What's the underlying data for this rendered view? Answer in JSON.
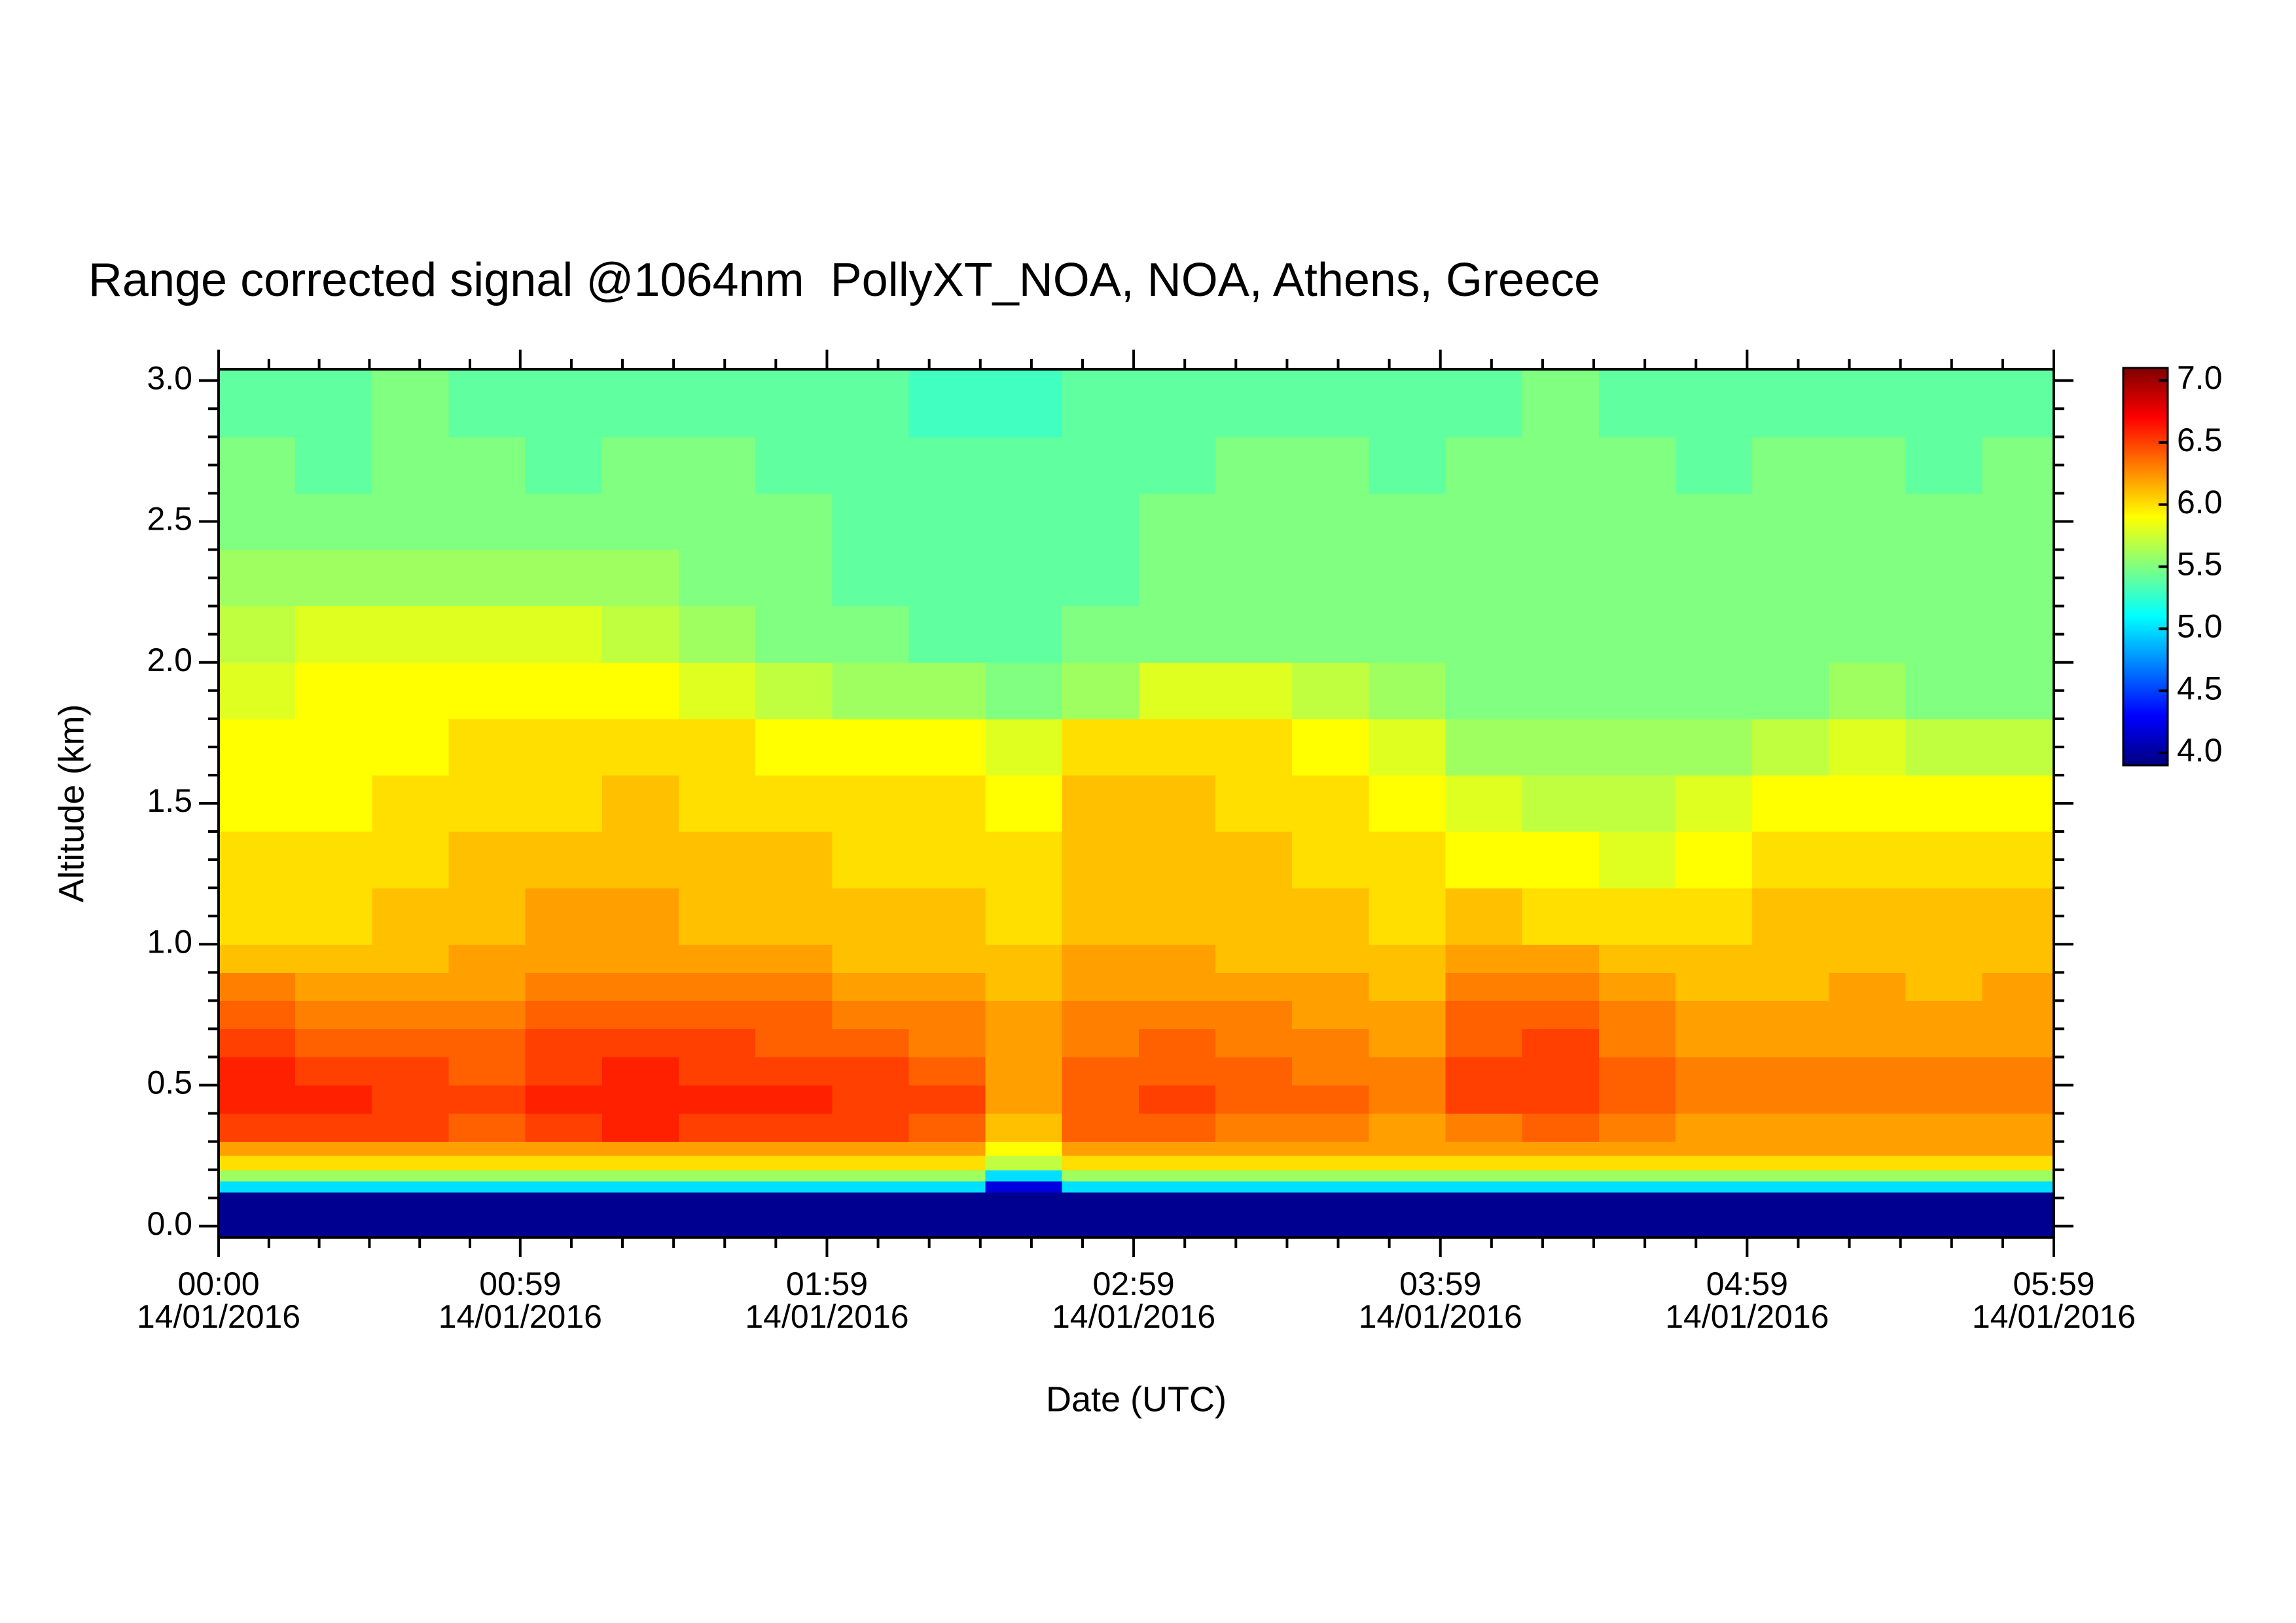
{
  "chart_data": {
    "type": "heatmap",
    "title": "Range corrected signal @1064nm  PollyXT_NOA, NOA, Athens, Greece",
    "x_label": "Date (UTC)",
    "y_label": "Altitude (km)",
    "xlim": [
      0,
      359
    ],
    "xticks": [
      {
        "value": 0,
        "label": "00:00\n14/01/2016"
      },
      {
        "value": 59,
        "label": "00:59\n14/01/2016"
      },
      {
        "value": 119,
        "label": "01:59\n14/01/2016"
      },
      {
        "value": 179,
        "label": "02:59\n14/01/2016"
      },
      {
        "value": 239,
        "label": "03:59\n14/01/2016"
      },
      {
        "value": 299,
        "label": "04:59\n14/01/2016"
      },
      {
        "value": 359,
        "label": "05:59\n14/01/2016"
      }
    ],
    "ylim": [
      -0.04,
      3.04
    ],
    "yticks": [
      {
        "value": 0,
        "label": "0.0"
      },
      0.5,
      {
        "value": 1,
        "label": "1.0"
      },
      1.5,
      {
        "value": 2,
        "label": "2.0"
      },
      2.5,
      {
        "value": 3,
        "label": "3.0"
      }
    ],
    "zlim": [
      3.9,
      7.1
    ],
    "zticks": [
      {
        "value": 4,
        "label": "4.0"
      },
      4.5,
      {
        "value": 5,
        "label": "5.0"
      },
      5.5,
      {
        "value": 6,
        "label": "6.0"
      },
      6.5,
      {
        "value": 7,
        "label": "7.0"
      }
    ],
    "colormap": [
      "#000080",
      "#0000ff",
      "#0080ff",
      "#00ffff",
      "#80ff80",
      "#ffff00",
      "#ff8000",
      "#ff0000",
      "#800000"
    ],
    "xbins": [
      0,
      15,
      30,
      45,
      60,
      75,
      90,
      105,
      120,
      135,
      150,
      165,
      180,
      195,
      210,
      225,
      240,
      255,
      270,
      285,
      300,
      315,
      330,
      345,
      359
    ],
    "ybins": [
      -0.04,
      0.12,
      0.16,
      0.2,
      0.25,
      0.3,
      0.4,
      0.5,
      0.6,
      0.7,
      0.8,
      0.9,
      1.0,
      1.2,
      1.4,
      1.6,
      1.8,
      2.0,
      2.2,
      2.4,
      2.6,
      2.8,
      3.04
    ],
    "values": [
      [
        3.95,
        3.95,
        3.95,
        3.95,
        3.95,
        3.95,
        3.95,
        3.95,
        3.95,
        3.95,
        3.95,
        3.95,
        3.95,
        3.95,
        3.95,
        3.95,
        3.95,
        3.95,
        3.95,
        3.95,
        3.95,
        3.95,
        3.95,
        3.95
      ],
      [
        5.0,
        5.0,
        5.0,
        5.0,
        5.0,
        5.0,
        5.0,
        5.0,
        5.0,
        5.0,
        4.2,
        5.0,
        5.0,
        5.0,
        5.0,
        5.0,
        5.0,
        5.0,
        5.0,
        5.0,
        5.0,
        5.0,
        5.0,
        5.0
      ],
      [
        5.6,
        5.6,
        5.6,
        5.6,
        5.6,
        5.6,
        5.6,
        5.6,
        5.6,
        5.6,
        5.0,
        5.6,
        5.6,
        5.6,
        5.6,
        5.6,
        5.6,
        5.6,
        5.6,
        5.6,
        5.6,
        5.6,
        5.6,
        5.6
      ],
      [
        6.0,
        6.0,
        6.0,
        6.0,
        6.0,
        6.0,
        6.0,
        6.0,
        6.0,
        6.0,
        5.7,
        6.0,
        6.0,
        6.0,
        6.0,
        6.0,
        6.0,
        6.0,
        6.0,
        6.0,
        6.0,
        6.0,
        6.0,
        6.0
      ],
      [
        6.2,
        6.2,
        6.2,
        6.2,
        6.2,
        6.2,
        6.2,
        6.2,
        6.2,
        6.2,
        5.9,
        6.2,
        6.2,
        6.2,
        6.2,
        6.2,
        6.2,
        6.2,
        6.2,
        6.2,
        6.2,
        6.2,
        6.2,
        6.2
      ],
      [
        6.5,
        6.5,
        6.5,
        6.4,
        6.5,
        6.6,
        6.5,
        6.5,
        6.5,
        6.4,
        6.1,
        6.4,
        6.4,
        6.3,
        6.3,
        6.2,
        6.3,
        6.4,
        6.3,
        6.2,
        6.2,
        6.2,
        6.2,
        6.2
      ],
      [
        6.6,
        6.6,
        6.5,
        6.5,
        6.6,
        6.6,
        6.6,
        6.6,
        6.5,
        6.5,
        6.2,
        6.4,
        6.5,
        6.4,
        6.4,
        6.3,
        6.5,
        6.5,
        6.4,
        6.3,
        6.3,
        6.3,
        6.3,
        6.3
      ],
      [
        6.6,
        6.5,
        6.5,
        6.4,
        6.5,
        6.6,
        6.5,
        6.5,
        6.5,
        6.4,
        6.2,
        6.4,
        6.4,
        6.4,
        6.3,
        6.3,
        6.5,
        6.5,
        6.4,
        6.3,
        6.3,
        6.3,
        6.3,
        6.3
      ],
      [
        6.5,
        6.4,
        6.4,
        6.4,
        6.5,
        6.5,
        6.5,
        6.4,
        6.4,
        6.3,
        6.2,
        6.3,
        6.4,
        6.3,
        6.3,
        6.2,
        6.4,
        6.5,
        6.3,
        6.2,
        6.2,
        6.2,
        6.2,
        6.2
      ],
      [
        6.4,
        6.3,
        6.3,
        6.3,
        6.4,
        6.4,
        6.4,
        6.4,
        6.3,
        6.3,
        6.2,
        6.3,
        6.3,
        6.3,
        6.2,
        6.2,
        6.4,
        6.4,
        6.3,
        6.2,
        6.2,
        6.2,
        6.2,
        6.2
      ],
      [
        6.3,
        6.2,
        6.2,
        6.2,
        6.3,
        6.3,
        6.3,
        6.3,
        6.2,
        6.2,
        6.1,
        6.2,
        6.2,
        6.2,
        6.2,
        6.1,
        6.3,
        6.3,
        6.2,
        6.1,
        6.1,
        6.2,
        6.1,
        6.2
      ],
      [
        6.1,
        6.1,
        6.1,
        6.2,
        6.2,
        6.2,
        6.2,
        6.2,
        6.1,
        6.1,
        6.1,
        6.2,
        6.2,
        6.1,
        6.1,
        6.1,
        6.2,
        6.2,
        6.1,
        6.1,
        6.1,
        6.1,
        6.1,
        6.1
      ],
      [
        6.0,
        6.0,
        6.1,
        6.1,
        6.2,
        6.2,
        6.1,
        6.1,
        6.1,
        6.1,
        6.0,
        6.1,
        6.1,
        6.1,
        6.1,
        6.0,
        6.1,
        6.0,
        6.0,
        6.0,
        6.1,
        6.1,
        6.1,
        6.1
      ],
      [
        6.0,
        6.0,
        6.0,
        6.1,
        6.1,
        6.1,
        6.1,
        6.1,
        6.0,
        6.0,
        6.0,
        6.1,
        6.1,
        6.1,
        6.0,
        6.0,
        5.9,
        5.9,
        5.8,
        5.9,
        6.0,
        6.0,
        6.0,
        6.0
      ],
      [
        5.9,
        5.9,
        6.0,
        6.0,
        6.0,
        6.1,
        6.0,
        6.0,
        6.0,
        6.0,
        5.9,
        6.1,
        6.1,
        6.0,
        6.0,
        5.9,
        5.8,
        5.7,
        5.7,
        5.8,
        5.9,
        5.9,
        5.9,
        5.9
      ],
      [
        5.9,
        5.9,
        5.9,
        6.0,
        6.0,
        6.0,
        6.0,
        5.9,
        5.9,
        5.9,
        5.8,
        6.0,
        6.0,
        6.0,
        5.9,
        5.8,
        5.6,
        5.6,
        5.6,
        5.6,
        5.7,
        5.8,
        5.7,
        5.7
      ],
      [
        5.8,
        5.9,
        5.9,
        5.9,
        5.9,
        5.9,
        5.8,
        5.7,
        5.6,
        5.6,
        5.5,
        5.6,
        5.8,
        5.8,
        5.7,
        5.6,
        5.5,
        5.5,
        5.5,
        5.5,
        5.5,
        5.6,
        5.5,
        5.5
      ],
      [
        5.7,
        5.8,
        5.8,
        5.8,
        5.8,
        5.7,
        5.6,
        5.5,
        5.5,
        5.4,
        5.4,
        5.5,
        5.5,
        5.5,
        5.5,
        5.5,
        5.5,
        5.5,
        5.5,
        5.5,
        5.5,
        5.5,
        5.5,
        5.5
      ],
      [
        5.6,
        5.6,
        5.6,
        5.6,
        5.6,
        5.6,
        5.5,
        5.5,
        5.4,
        5.4,
        5.4,
        5.4,
        5.5,
        5.5,
        5.5,
        5.5,
        5.5,
        5.5,
        5.5,
        5.5,
        5.5,
        5.5,
        5.5,
        5.5
      ],
      [
        5.5,
        5.5,
        5.5,
        5.5,
        5.5,
        5.5,
        5.5,
        5.5,
        5.4,
        5.4,
        5.4,
        5.4,
        5.5,
        5.5,
        5.5,
        5.5,
        5.5,
        5.5,
        5.5,
        5.5,
        5.5,
        5.5,
        5.5,
        5.5
      ],
      [
        5.5,
        5.4,
        5.5,
        5.5,
        5.4,
        5.5,
        5.5,
        5.4,
        5.4,
        5.4,
        5.4,
        5.4,
        5.4,
        5.5,
        5.5,
        5.4,
        5.5,
        5.5,
        5.5,
        5.4,
        5.5,
        5.5,
        5.4,
        5.5
      ],
      [
        5.4,
        5.4,
        5.5,
        5.4,
        5.4,
        5.4,
        5.4,
        5.4,
        5.4,
        5.3,
        5.3,
        5.4,
        5.4,
        5.4,
        5.4,
        5.4,
        5.4,
        5.5,
        5.4,
        5.4,
        5.4,
        5.4,
        5.4,
        5.4
      ]
    ]
  }
}
